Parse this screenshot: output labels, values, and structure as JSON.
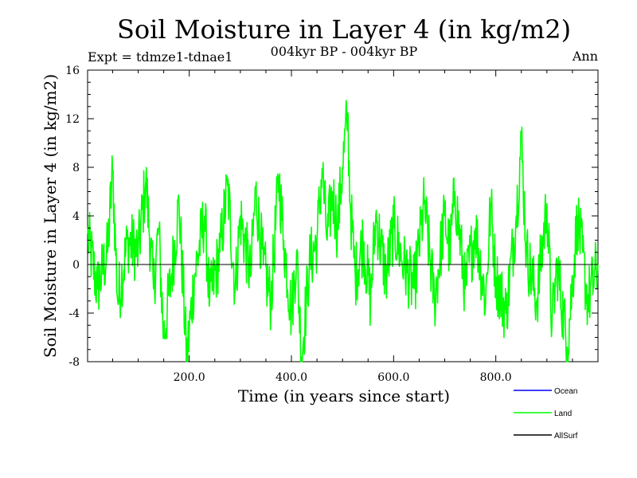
{
  "chart_data": {
    "type": "line",
    "title": "Soil Moisture in Layer 4 (in kg/m2)",
    "subtitle_left": "Expt = tdmze1-tdnae1",
    "subtitle_center": "004kyr BP - 004kyr BP",
    "subtitle_right": "Ann",
    "xlabel": "Time (in years since start)",
    "ylabel": "Soil Moisture in Layer 4 (in kg/m2)",
    "xlim": [
      1,
      1000
    ],
    "ylim": [
      -8,
      16
    ],
    "x_ticks": [
      200,
      400,
      600,
      800
    ],
    "x_tick_labels": [
      "200.0",
      "400.0",
      "600.0",
      "800.0"
    ],
    "y_ticks": [
      -8,
      -4,
      0,
      4,
      8,
      12,
      16
    ],
    "y_tick_labels": [
      "-8",
      "-4",
      "0",
      "4",
      "8",
      "12",
      "16"
    ],
    "grid": false,
    "legend_position": "bottom-right",
    "legend": [
      {
        "name": "Ocean",
        "color": "#0000ff"
      },
      {
        "name": "Land",
        "color": "#00ff00"
      },
      {
        "name": "AllSurf",
        "color": "#000000"
      }
    ],
    "series": [
      {
        "name": "Land",
        "color": "#00ff00",
        "x": [
          1,
          20,
          40,
          50,
          60,
          80,
          100,
          115,
          130,
          140,
          150,
          165,
          180,
          195,
          210,
          230,
          240,
          260,
          275,
          290,
          300,
          320,
          330,
          345,
          360,
          375,
          385,
          400,
          410,
          420,
          435,
          450,
          460,
          470,
          480,
          490,
          500,
          510,
          515,
          525,
          540,
          555,
          565,
          585,
          600,
          620,
          640,
          660,
          680,
          700,
          710,
          720,
          740,
          760,
          780,
          790,
          800,
          820,
          840,
          850,
          860,
          880,
          900,
          910,
          920,
          940,
          960,
          980,
          1000
        ],
        "values": [
          2.5,
          -2,
          1,
          7.7,
          -3,
          2,
          1,
          6.9,
          -2,
          3,
          -6,
          -1,
          5,
          -7.8,
          -1,
          4,
          -3,
          1,
          6.5,
          -2,
          4,
          -1,
          6,
          0,
          -3,
          7.3,
          2,
          -4,
          1,
          -7.6,
          0,
          2,
          7.9,
          2,
          6,
          3,
          8,
          12.5,
          5,
          -1,
          2,
          -3,
          4,
          -1,
          3,
          0,
          -2,
          5,
          -3,
          4,
          1,
          6,
          -2,
          3,
          -3,
          5,
          -1,
          -4,
          4,
          10.3,
          1,
          -3,
          5,
          -5,
          0,
          -6.8,
          4,
          -3,
          0
        ]
      }
    ],
    "reference_line": {
      "name": "AllSurf",
      "value": 0,
      "color": "#000000"
    }
  }
}
